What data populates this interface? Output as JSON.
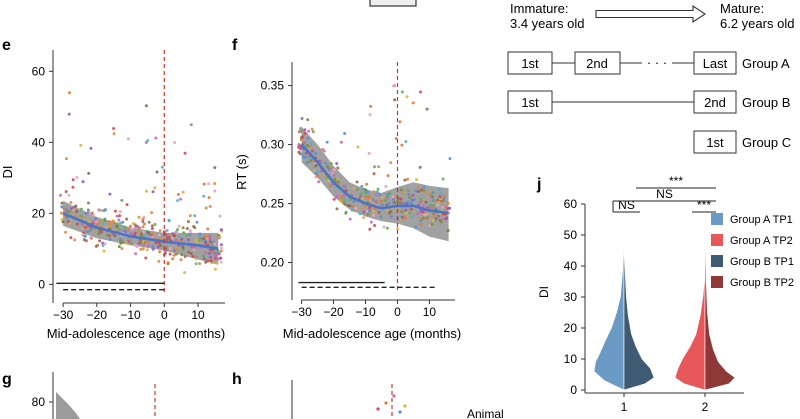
{
  "colors": {
    "fit_line": "#4a74c9",
    "ci_band": "#8a8a8a",
    "onset_line": "#c0392b",
    "axis": "#333333",
    "groupA_tp1": "#6b9ac4",
    "groupA_tp2": "#e8585a",
    "groupB_tp1": "#3f5a73",
    "groupB_tp2": "#8f3838",
    "dot_palette": [
      "#5b8dd6",
      "#e07b39",
      "#d9b43a",
      "#5fae5b",
      "#c94f4f",
      "#c76ab8",
      "#8d6a4e",
      "#51b0c6",
      "#9b59b6",
      "#e8a3c4",
      "#7a8b3a",
      "#d98c3d"
    ]
  },
  "header": {
    "immature_label": "Immature:",
    "immature_age": "3.4 years old",
    "mature_label": "Mature:",
    "mature_age": "6.2 years old"
  },
  "schematic": {
    "groupA": {
      "boxes": [
        "1st",
        "2nd",
        "Last"
      ],
      "ellipsis": "· · ·",
      "label": "Group A"
    },
    "groupB": {
      "boxes": [
        "1st",
        "2nd"
      ],
      "label": "Group B"
    },
    "groupC": {
      "boxes": [
        "1st"
      ],
      "label": "Group C"
    }
  },
  "panel_letters": {
    "e": "e",
    "f": "f",
    "g": "g",
    "h": "h",
    "j": "j"
  },
  "truncated_text": {
    "animal": "Animal"
  },
  "chart_data": [
    {
      "id": "e",
      "type": "scatter",
      "title": "",
      "xlabel": "Mid-adolescence age (months)",
      "ylabel": "DI",
      "xlim": [
        -33,
        18
      ],
      "ylim": [
        -3,
        66
      ],
      "xticks": [
        -30,
        -20,
        -10,
        0,
        10
      ],
      "xtick_labels": [
        "−30",
        "−20",
        "−10",
        "0",
        "10"
      ],
      "yticks": [
        0,
        20,
        40,
        60
      ],
      "ytick_labels": [
        "0",
        "20",
        "40",
        "60"
      ],
      "onset_x": 0,
      "fit": {
        "x": [
          -30,
          -20,
          -10,
          0,
          10,
          16
        ],
        "y": [
          20,
          16,
          13.5,
          12,
          11,
          10
        ]
      },
      "ci_upper": [
        23.5,
        19,
        16,
        14.5,
        14.5,
        14.5
      ],
      "ci_lower": [
        16.5,
        13,
        11,
        9.5,
        7,
        5.5
      ],
      "sig_bars": [
        {
          "x": [
            -32,
            0
          ],
          "y": 0.3,
          "style": "solid"
        },
        {
          "x": [
            -30,
            0
          ],
          "y": -1.5,
          "style": "dashed"
        }
      ],
      "scatter_seed": 11,
      "scatter_n": 420
    },
    {
      "id": "f",
      "type": "scatter",
      "title": "",
      "xlabel": "Mid-adolescence age (months)",
      "ylabel": "RT (s)",
      "xlim": [
        -33,
        18
      ],
      "ylim": [
        0.175,
        0.37
      ],
      "xticks": [
        -30,
        -20,
        -10,
        0,
        10
      ],
      "xtick_labels": [
        "−30",
        "−20",
        "−10",
        "0",
        "10"
      ],
      "yticks": [
        0.2,
        0.25,
        0.3,
        0.35
      ],
      "ytick_labels": [
        "0.20",
        "0.25",
        "0.30",
        "0.35"
      ],
      "onset_x": 0,
      "fit": {
        "x": [
          -30,
          -25,
          -20,
          -15,
          -10,
          -5,
          0,
          5,
          10,
          16
        ],
        "y": [
          0.3,
          0.285,
          0.268,
          0.256,
          0.25,
          0.246,
          0.248,
          0.248,
          0.244,
          0.242
        ]
      },
      "ci_upper": [
        0.315,
        0.3,
        0.282,
        0.268,
        0.262,
        0.259,
        0.264,
        0.268,
        0.265,
        0.263
      ],
      "ci_lower": [
        0.285,
        0.272,
        0.256,
        0.245,
        0.239,
        0.235,
        0.233,
        0.229,
        0.222,
        0.218
      ],
      "sig_bars": [
        {
          "x": [
            -31,
            -4
          ],
          "y": 0.183,
          "style": "solid"
        },
        {
          "x": [
            -30,
            12
          ],
          "y": 0.179,
          "style": "dashed"
        }
      ],
      "scatter_seed": 23,
      "scatter_n": 380
    },
    {
      "id": "j",
      "type": "violin",
      "title": "",
      "xlabel": "",
      "ylabel": "DI",
      "ylim": [
        0,
        60
      ],
      "yticks": [
        0,
        10,
        20,
        30,
        40,
        50,
        60
      ],
      "ytick_labels": [
        "0",
        "10",
        "20",
        "30",
        "40",
        "50",
        "60"
      ],
      "categories": [
        "1",
        "2"
      ],
      "series": [
        {
          "name": "Group A TP1",
          "category": "1",
          "side": "left",
          "color_key": "groupA_tp1",
          "max": 55,
          "density": [
            [
              0,
              0.0
            ],
            [
              3,
              0.65
            ],
            [
              6,
              1.0
            ],
            [
              9,
              0.95
            ],
            [
              12,
              0.8
            ],
            [
              16,
              0.62
            ],
            [
              20,
              0.42
            ],
            [
              25,
              0.25
            ],
            [
              30,
              0.12
            ],
            [
              38,
              0.05
            ],
            [
              46,
              0.02
            ],
            [
              55,
              0.0
            ]
          ]
        },
        {
          "name": "Group B TP1",
          "category": "1",
          "side": "right",
          "color_key": "groupB_tp1",
          "max": 47,
          "density": [
            [
              0,
              0.0
            ],
            [
              2,
              0.7
            ],
            [
              4,
              1.0
            ],
            [
              7,
              0.88
            ],
            [
              10,
              0.6
            ],
            [
              14,
              0.4
            ],
            [
              18,
              0.25
            ],
            [
              24,
              0.14
            ],
            [
              30,
              0.08
            ],
            [
              38,
              0.04
            ],
            [
              47,
              0.0
            ]
          ]
        },
        {
          "name": "Group A TP2",
          "category": "2",
          "side": "left",
          "color_key": "groupA_tp2",
          "max": 38,
          "density": [
            [
              0,
              0.0
            ],
            [
              2,
              0.7
            ],
            [
              4,
              1.0
            ],
            [
              7,
              0.9
            ],
            [
              10,
              0.75
            ],
            [
              14,
              0.5
            ],
            [
              18,
              0.3
            ],
            [
              24,
              0.16
            ],
            [
              30,
              0.07
            ],
            [
              38,
              0.0
            ]
          ]
        },
        {
          "name": "Group B TP2",
          "category": "2",
          "side": "right",
          "color_key": "groupB_tp2",
          "max": 53,
          "density": [
            [
              0,
              0.0
            ],
            [
              2,
              0.8
            ],
            [
              4,
              1.0
            ],
            [
              6,
              0.72
            ],
            [
              9,
              0.45
            ],
            [
              13,
              0.28
            ],
            [
              18,
              0.15
            ],
            [
              25,
              0.08
            ],
            [
              35,
              0.04
            ],
            [
              45,
              0.02
            ],
            [
              53,
              0.0
            ]
          ]
        }
      ],
      "legend": [
        "Group A TP1",
        "Group A TP2",
        "Group B TP1",
        "Group B TP2"
      ],
      "significance": [
        {
          "label": "NS",
          "from": "1",
          "to": "1",
          "level": 1
        },
        {
          "label": "NS",
          "from": "1",
          "to": "2",
          "level": 2
        },
        {
          "label": "***",
          "from": "2",
          "to": "2",
          "level": 1
        },
        {
          "label": "***",
          "from": "1",
          "to": "2",
          "level": 3
        }
      ]
    },
    {
      "id": "g",
      "type": "scatter",
      "title": "",
      "partial": true,
      "yticks": [
        80
      ],
      "ytick_labels": [
        "80"
      ]
    },
    {
      "id": "h",
      "type": "scatter",
      "title": "",
      "partial": true
    }
  ]
}
